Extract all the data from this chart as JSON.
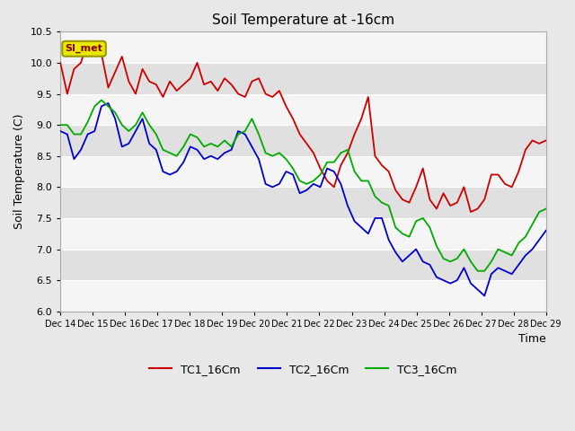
{
  "title": "Soil Temperature at -16cm",
  "ylabel": "Soil Temperature (C)",
  "xlabel": "Time",
  "ylim": [
    6.0,
    10.5
  ],
  "yticks": [
    6.0,
    6.5,
    7.0,
    7.5,
    8.0,
    8.5,
    9.0,
    9.5,
    10.0,
    10.5
  ],
  "si_met_label": "SI_met",
  "si_met_bg": "#e8e800",
  "si_met_border": "#999900",
  "si_met_text_color": "#880000",
  "legend_entries": [
    "TC1_16Cm",
    "TC2_16Cm",
    "TC3_16Cm"
  ],
  "line_colors": [
    "#cc0000",
    "#0000cc",
    "#00aa00"
  ],
  "xtick_labels": [
    "Dec 14",
    "Dec 15",
    "Dec 16",
    "Dec 17",
    "Dec 18",
    "Dec 19",
    "Dec 20",
    "Dec 21",
    "Dec 22",
    "Dec 23",
    "Dec 24",
    "Dec 25",
    "Dec 26",
    "Dec 27",
    "Dec 28",
    "Dec 29"
  ],
  "fig_bg": "#e8e8e8",
  "band_light": "#f5f5f5",
  "band_dark": "#e0e0e0",
  "grid_color": "#ffffff",
  "tc1": [
    10.0,
    9.5,
    9.9,
    10.0,
    10.35,
    10.2,
    10.15,
    9.6,
    9.85,
    10.1,
    9.7,
    9.5,
    9.9,
    9.7,
    9.65,
    9.45,
    9.7,
    9.55,
    9.65,
    9.75,
    10.0,
    9.65,
    9.7,
    9.55,
    9.75,
    9.65,
    9.5,
    9.45,
    9.7,
    9.75,
    9.5,
    9.45,
    9.55,
    9.3,
    9.1,
    8.85,
    8.7,
    8.55,
    8.3,
    8.1,
    8.0,
    8.35,
    8.55,
    8.85,
    9.1,
    9.45,
    8.5,
    8.35,
    8.25,
    7.95,
    7.8,
    7.75,
    8.0,
    8.3,
    7.8,
    7.65,
    7.9,
    7.7,
    7.75,
    8.0,
    7.6,
    7.65,
    7.8,
    8.2,
    8.2,
    8.05,
    8.0,
    8.25,
    8.6,
    8.75,
    8.7,
    8.75
  ],
  "tc2": [
    8.9,
    8.85,
    8.45,
    8.6,
    8.85,
    8.9,
    9.3,
    9.35,
    9.1,
    8.65,
    8.7,
    8.9,
    9.1,
    8.7,
    8.6,
    8.25,
    8.2,
    8.25,
    8.4,
    8.65,
    8.6,
    8.45,
    8.5,
    8.45,
    8.55,
    8.6,
    8.9,
    8.85,
    8.65,
    8.45,
    8.05,
    8.0,
    8.05,
    8.25,
    8.2,
    7.9,
    7.95,
    8.05,
    8.0,
    8.3,
    8.25,
    8.05,
    7.7,
    7.45,
    7.35,
    7.25,
    7.5,
    7.5,
    7.15,
    6.95,
    6.8,
    6.9,
    7.0,
    6.8,
    6.75,
    6.55,
    6.5,
    6.45,
    6.5,
    6.7,
    6.45,
    6.35,
    6.25,
    6.6,
    6.7,
    6.65,
    6.6,
    6.75,
    6.9,
    7.0,
    7.15,
    7.3
  ],
  "tc3": [
    9.0,
    9.0,
    8.85,
    8.85,
    9.05,
    9.3,
    9.4,
    9.3,
    9.2,
    9.0,
    8.9,
    9.0,
    9.2,
    9.0,
    8.85,
    8.6,
    8.55,
    8.5,
    8.65,
    8.85,
    8.8,
    8.65,
    8.7,
    8.65,
    8.75,
    8.65,
    8.85,
    8.9,
    9.1,
    8.85,
    8.55,
    8.5,
    8.55,
    8.45,
    8.3,
    8.1,
    8.05,
    8.1,
    8.2,
    8.4,
    8.4,
    8.55,
    8.6,
    8.25,
    8.1,
    8.1,
    7.85,
    7.75,
    7.7,
    7.35,
    7.25,
    7.2,
    7.45,
    7.5,
    7.35,
    7.05,
    6.85,
    6.8,
    6.85,
    7.0,
    6.8,
    6.65,
    6.65,
    6.8,
    7.0,
    6.95,
    6.9,
    7.1,
    7.2,
    7.4,
    7.6,
    7.65
  ]
}
